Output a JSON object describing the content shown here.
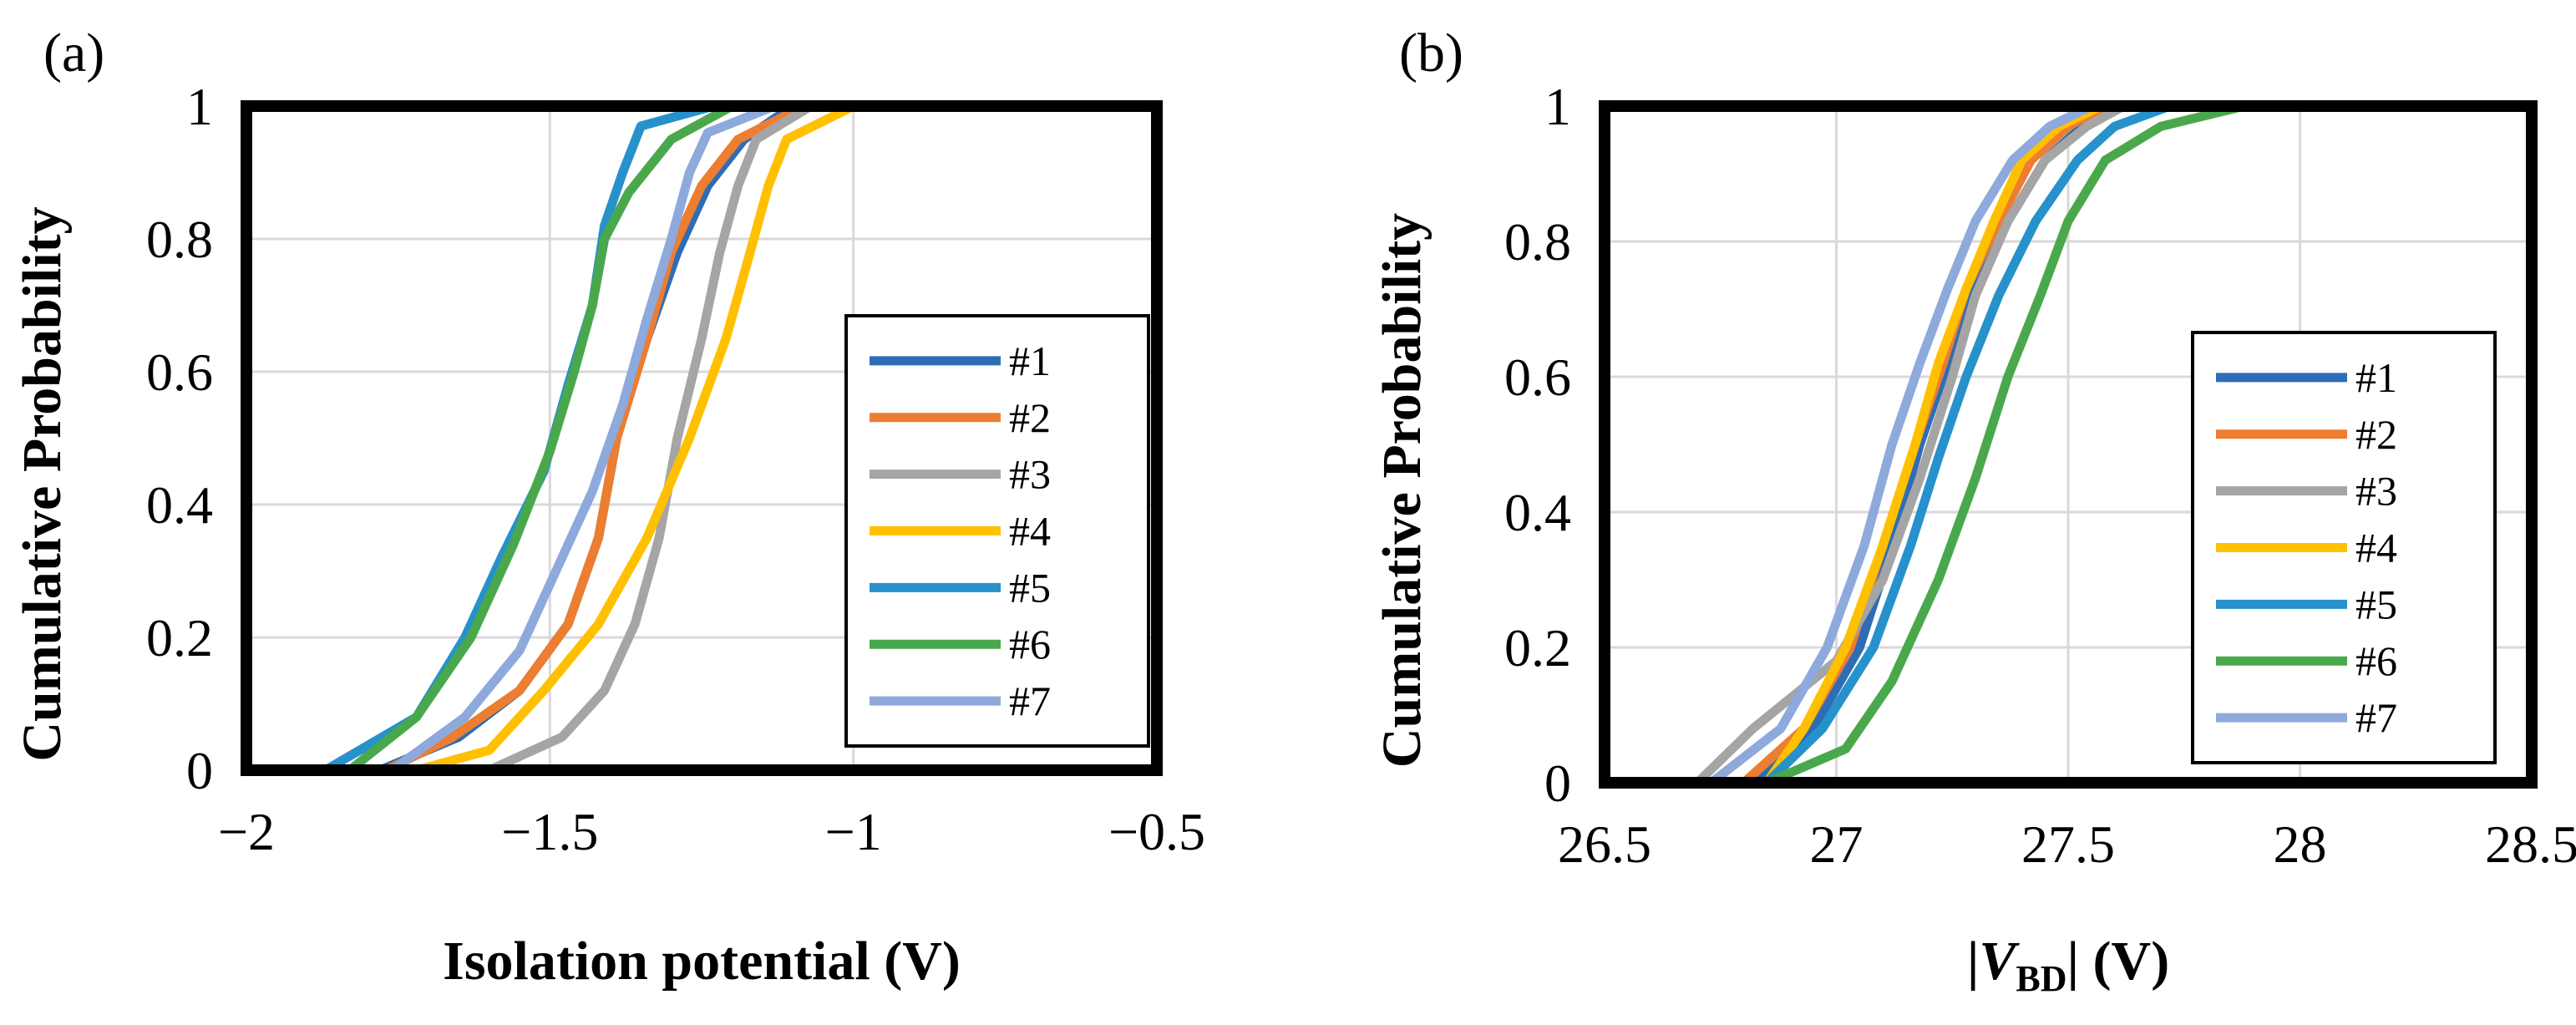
{
  "chart_data": [
    {
      "type": "line",
      "panel_label": "(a)",
      "title": "",
      "xlabel": "Isolation potential (V)",
      "ylabel": "Cumulative  Probability",
      "xlim": [
        -2,
        -0.5
      ],
      "ylim": [
        0,
        1
      ],
      "x_ticks": [
        -2,
        -1.5,
        -1,
        -0.5
      ],
      "x_tick_labels": [
        "−2",
        "−1.5",
        "−1",
        "−0.5"
      ],
      "y_ticks": [
        0,
        0.2,
        0.4,
        0.6,
        0.8,
        1
      ],
      "y_tick_labels": [
        "0",
        "0.2",
        "0.4",
        "0.6",
        "0.8",
        "1"
      ],
      "grid": true,
      "legend_position": "right",
      "series": [
        {
          "name": "#1",
          "color": "#2E6DB5",
          "points": [
            [
              -1.78,
              0
            ],
            [
              -1.65,
              0.05
            ],
            [
              -1.55,
              0.12
            ],
            [
              -1.47,
              0.22
            ],
            [
              -1.42,
              0.35
            ],
            [
              -1.39,
              0.5
            ],
            [
              -1.34,
              0.65
            ],
            [
              -1.29,
              0.78
            ],
            [
              -1.24,
              0.88
            ],
            [
              -1.18,
              0.95
            ],
            [
              -1.1,
              1
            ]
          ]
        },
        {
          "name": "#2",
          "color": "#ED7D31",
          "points": [
            [
              -1.77,
              0
            ],
            [
              -1.66,
              0.05
            ],
            [
              -1.55,
              0.12
            ],
            [
              -1.47,
              0.22
            ],
            [
              -1.42,
              0.35
            ],
            [
              -1.39,
              0.5
            ],
            [
              -1.34,
              0.65
            ],
            [
              -1.3,
              0.78
            ],
            [
              -1.25,
              0.88
            ],
            [
              -1.19,
              0.95
            ],
            [
              -1.08,
              1
            ]
          ]
        },
        {
          "name": "#3",
          "color": "#A5A5A5",
          "points": [
            [
              -1.6,
              0
            ],
            [
              -1.48,
              0.05
            ],
            [
              -1.41,
              0.12
            ],
            [
              -1.36,
              0.22
            ],
            [
              -1.32,
              0.35
            ],
            [
              -1.29,
              0.5
            ],
            [
              -1.25,
              0.65
            ],
            [
              -1.22,
              0.78
            ],
            [
              -1.19,
              0.88
            ],
            [
              -1.16,
              0.95
            ],
            [
              -1.07,
              1
            ]
          ]
        },
        {
          "name": "#4",
          "color": "#FFC000",
          "points": [
            [
              -1.72,
              0
            ],
            [
              -1.6,
              0.03
            ],
            [
              -1.51,
              0.12
            ],
            [
              -1.42,
              0.22
            ],
            [
              -1.34,
              0.35
            ],
            [
              -1.27,
              0.5
            ],
            [
              -1.21,
              0.65
            ],
            [
              -1.17,
              0.78
            ],
            [
              -1.14,
              0.88
            ],
            [
              -1.11,
              0.95
            ],
            [
              -1.0,
              1
            ]
          ]
        },
        {
          "name": "#5",
          "color": "#2791CB",
          "points": [
            [
              -1.87,
              0
            ],
            [
              -1.72,
              0.08
            ],
            [
              -1.64,
              0.2
            ],
            [
              -1.58,
              0.32
            ],
            [
              -1.51,
              0.45
            ],
            [
              -1.47,
              0.58
            ],
            [
              -1.43,
              0.7
            ],
            [
              -1.41,
              0.82
            ],
            [
              -1.38,
              0.9
            ],
            [
              -1.35,
              0.97
            ],
            [
              -1.23,
              1
            ]
          ]
        },
        {
          "name": "#6",
          "color": "#4AA84C",
          "points": [
            [
              -1.83,
              0
            ],
            [
              -1.72,
              0.08
            ],
            [
              -1.63,
              0.2
            ],
            [
              -1.56,
              0.34
            ],
            [
              -1.5,
              0.48
            ],
            [
              -1.46,
              0.6
            ],
            [
              -1.43,
              0.7
            ],
            [
              -1.41,
              0.8
            ],
            [
              -1.37,
              0.87
            ],
            [
              -1.3,
              0.95
            ],
            [
              -1.2,
              1
            ]
          ]
        },
        {
          "name": "#7",
          "color": "#8EA9DB",
          "points": [
            [
              -1.76,
              0
            ],
            [
              -1.64,
              0.08
            ],
            [
              -1.55,
              0.18
            ],
            [
              -1.49,
              0.3
            ],
            [
              -1.43,
              0.42
            ],
            [
              -1.38,
              0.55
            ],
            [
              -1.34,
              0.68
            ],
            [
              -1.3,
              0.8
            ],
            [
              -1.27,
              0.9
            ],
            [
              -1.24,
              0.96
            ],
            [
              -1.13,
              1
            ]
          ]
        }
      ]
    },
    {
      "type": "line",
      "panel_label": "(b)",
      "title": "",
      "xlabel_main": "|V",
      "xlabel_sub": "BD",
      "xlabel_end": "| (V)",
      "ylabel": "Cumulative  Probability",
      "xlim": [
        26.5,
        28.5
      ],
      "ylim": [
        0,
        1
      ],
      "x_ticks": [
        26.5,
        27,
        27.5,
        28,
        28.5
      ],
      "x_tick_labels": [
        "26.5",
        "27",
        "27.5",
        "28",
        "28.5"
      ],
      "y_ticks": [
        0,
        0.2,
        0.4,
        0.6,
        0.8,
        1
      ],
      "y_tick_labels": [
        "0",
        "0.2",
        "0.4",
        "0.6",
        "0.8",
        "1"
      ],
      "grid": true,
      "legend_position": "right",
      "series": [
        {
          "name": "#1",
          "color": "#2E6DB5",
          "points": [
            [
              26.82,
              0
            ],
            [
              26.95,
              0.08
            ],
            [
              27.05,
              0.2
            ],
            [
              27.12,
              0.35
            ],
            [
              27.18,
              0.5
            ],
            [
              27.24,
              0.62
            ],
            [
              27.3,
              0.73
            ],
            [
              27.37,
              0.83
            ],
            [
              27.45,
              0.92
            ],
            [
              27.53,
              0.97
            ],
            [
              27.62,
              1
            ]
          ]
        },
        {
          "name": "#2",
          "color": "#ED7D31",
          "points": [
            [
              26.8,
              0
            ],
            [
              26.93,
              0.08
            ],
            [
              27.03,
              0.2
            ],
            [
              27.1,
              0.35
            ],
            [
              27.17,
              0.5
            ],
            [
              27.23,
              0.62
            ],
            [
              27.28,
              0.73
            ],
            [
              27.35,
              0.83
            ],
            [
              27.42,
              0.92
            ],
            [
              27.5,
              0.97
            ],
            [
              27.58,
              1
            ]
          ]
        },
        {
          "name": "#3",
          "color": "#A5A5A5",
          "points": [
            [
              26.7,
              0
            ],
            [
              26.82,
              0.08
            ],
            [
              27.0,
              0.18
            ],
            [
              27.1,
              0.3
            ],
            [
              27.18,
              0.45
            ],
            [
              27.25,
              0.6
            ],
            [
              27.3,
              0.72
            ],
            [
              27.37,
              0.83
            ],
            [
              27.45,
              0.92
            ],
            [
              27.54,
              0.97
            ],
            [
              27.62,
              1
            ]
          ]
        },
        {
          "name": "#4",
          "color": "#FFC000",
          "points": [
            [
              26.85,
              0
            ],
            [
              26.93,
              0.08
            ],
            [
              27.02,
              0.2
            ],
            [
              27.1,
              0.35
            ],
            [
              27.17,
              0.5
            ],
            [
              27.22,
              0.62
            ],
            [
              27.28,
              0.73
            ],
            [
              27.34,
              0.83
            ],
            [
              27.4,
              0.92
            ],
            [
              27.48,
              0.97
            ],
            [
              27.57,
              1
            ]
          ]
        },
        {
          "name": "#5",
          "color": "#2791CB",
          "points": [
            [
              26.85,
              0
            ],
            [
              26.97,
              0.08
            ],
            [
              27.08,
              0.2
            ],
            [
              27.16,
              0.35
            ],
            [
              27.22,
              0.48
            ],
            [
              27.28,
              0.6
            ],
            [
              27.35,
              0.72
            ],
            [
              27.43,
              0.83
            ],
            [
              27.52,
              0.92
            ],
            [
              27.6,
              0.97
            ],
            [
              27.72,
              1
            ]
          ]
        },
        {
          "name": "#6",
          "color": "#4AA84C",
          "points": [
            [
              26.85,
              0
            ],
            [
              27.02,
              0.05
            ],
            [
              27.12,
              0.15
            ],
            [
              27.22,
              0.3
            ],
            [
              27.3,
              0.45
            ],
            [
              27.37,
              0.6
            ],
            [
              27.44,
              0.72
            ],
            [
              27.5,
              0.83
            ],
            [
              27.58,
              0.92
            ],
            [
              27.7,
              0.97
            ],
            [
              27.88,
              1
            ]
          ]
        },
        {
          "name": "#7",
          "color": "#8EA9DB",
          "points": [
            [
              26.73,
              0
            ],
            [
              26.88,
              0.08
            ],
            [
              26.98,
              0.2
            ],
            [
              27.06,
              0.35
            ],
            [
              27.12,
              0.5
            ],
            [
              27.18,
              0.62
            ],
            [
              27.24,
              0.73
            ],
            [
              27.3,
              0.83
            ],
            [
              27.38,
              0.92
            ],
            [
              27.46,
              0.97
            ],
            [
              27.55,
              1
            ]
          ]
        }
      ]
    }
  ]
}
